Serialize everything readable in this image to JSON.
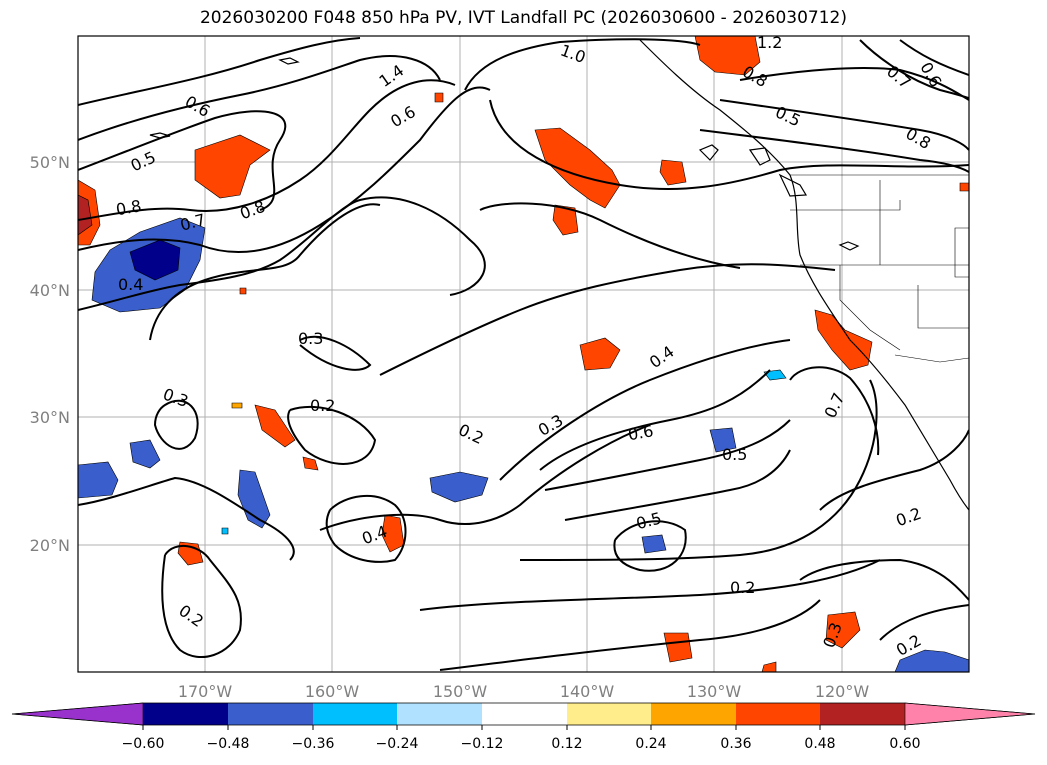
{
  "title": "2026030200 F048 850 hPa PV, IVT Landfall PC (2026030600 - 2026030712)",
  "map": {
    "lat_labels": [
      "50°N",
      "40°N",
      "30°N",
      "20°N"
    ],
    "lon_labels": [
      "170°W",
      "160°W",
      "150°W",
      "140°W",
      "130°W",
      "120°W"
    ],
    "contour_labels": [
      "1.2",
      "1.0",
      "1.4",
      "0.8",
      "0.7",
      "0.6",
      "0.6",
      "0.5",
      "0.8",
      "0.7",
      "0.4",
      "0.8",
      "0.6",
      "0.8",
      "0.5",
      "0.3",
      "0.4",
      "0.3",
      "0.2",
      "0.2",
      "0.3",
      "0.6",
      "0.5",
      "0.7",
      "0.5",
      "0.4",
      "0.2",
      "0.2",
      "0.3",
      "0.2",
      "0.2"
    ]
  },
  "colorbar": {
    "colors": [
      "#9932cc",
      "#00008b",
      "#3a5fcd",
      "#00bfff",
      "#b0e2ff",
      "#ffffff",
      "#ffec8b",
      "#ffa500",
      "#ff4500",
      "#b22222",
      "#ff82ab"
    ],
    "tick_labels": [
      "−0.60",
      "−0.48",
      "−0.36",
      "−0.24",
      "−0.12",
      "0.12",
      "0.24",
      "0.36",
      "0.48",
      "0.60"
    ]
  }
}
